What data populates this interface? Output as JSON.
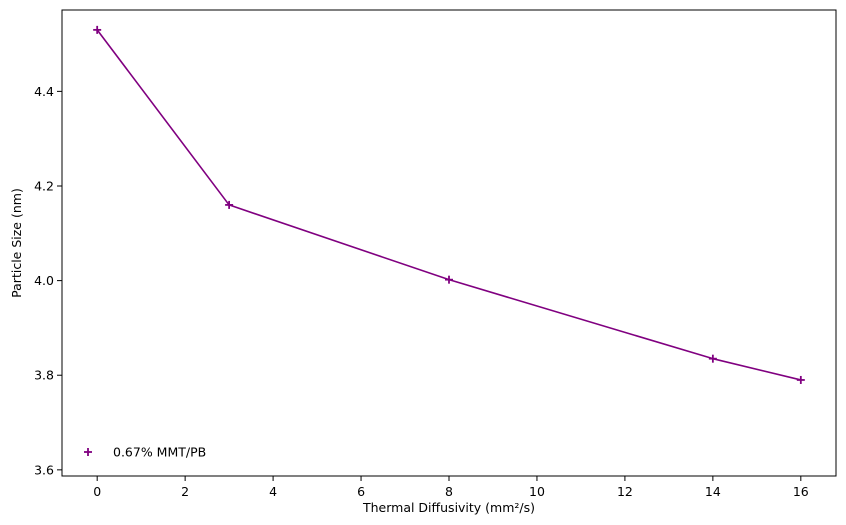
{
  "chart_data": {
    "type": "line",
    "title": "",
    "xlabel": "Thermal Diffusivity (mm²/s)",
    "ylabel": "Particle Size (nm)",
    "xlim": [
      -0.8,
      16.8
    ],
    "ylim": [
      3.587,
      4.572
    ],
    "xticks": [
      0,
      2,
      4,
      6,
      8,
      10,
      12,
      14,
      16
    ],
    "yticks": [
      3.6,
      3.8,
      4.0,
      4.2,
      4.4
    ],
    "xtick_labels": [
      "0",
      "2",
      "4",
      "6",
      "8",
      "10",
      "12",
      "14",
      "16"
    ],
    "ytick_labels": [
      "3.6",
      "3.8",
      "4.0",
      "4.2",
      "4.4"
    ],
    "grid": false,
    "legend_position": "lower-left",
    "series": [
      {
        "name": "0.67% MMT/PB",
        "color": "#800080",
        "marker": "plus",
        "x": [
          0,
          3,
          8,
          14,
          16
        ],
        "y": [
          4.53,
          4.16,
          4.002,
          3.835,
          3.79
        ]
      }
    ]
  }
}
